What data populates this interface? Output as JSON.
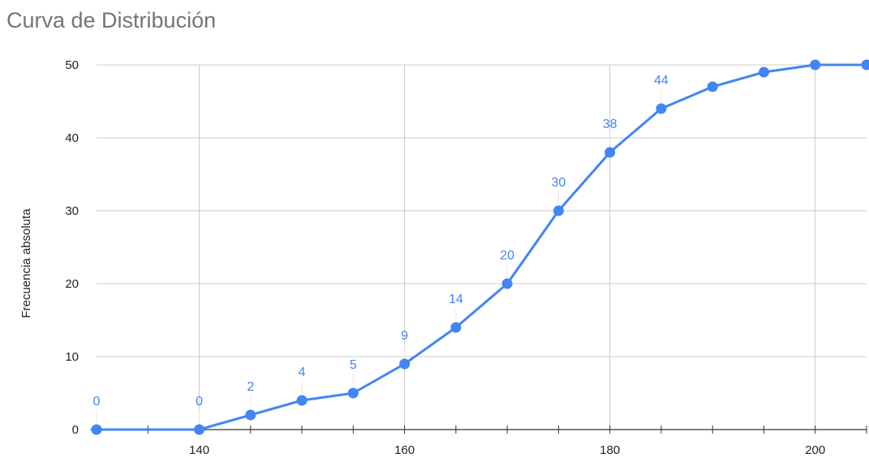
{
  "chart_data": {
    "type": "line",
    "title": "Curva de Distribución",
    "ylabel": "Frecuencia absoluta",
    "xlabel": "",
    "xlim": [
      130,
      205
    ],
    "ylim": [
      0,
      50
    ],
    "x_ticks": [
      140,
      160,
      180,
      200
    ],
    "x_minor_ticks": [
      130,
      135,
      145,
      150,
      155,
      165,
      170,
      175,
      185,
      190,
      195,
      205
    ],
    "y_ticks": [
      0,
      10,
      20,
      30,
      40,
      50
    ],
    "grid": true,
    "color": "#4285f4",
    "series": [
      {
        "x": [
          130,
          140,
          145,
          150,
          155,
          160,
          165,
          170,
          175,
          180,
          185,
          190,
          195,
          200,
          205
        ],
        "values": [
          0,
          0,
          2,
          4,
          5,
          9,
          14,
          20,
          30,
          38,
          44,
          47,
          49,
          50,
          50
        ],
        "labels": [
          "0",
          "0",
          "2",
          "4",
          "5",
          "9",
          "14",
          "20",
          "30",
          "38",
          "44",
          "",
          "",
          "",
          ""
        ]
      }
    ]
  }
}
